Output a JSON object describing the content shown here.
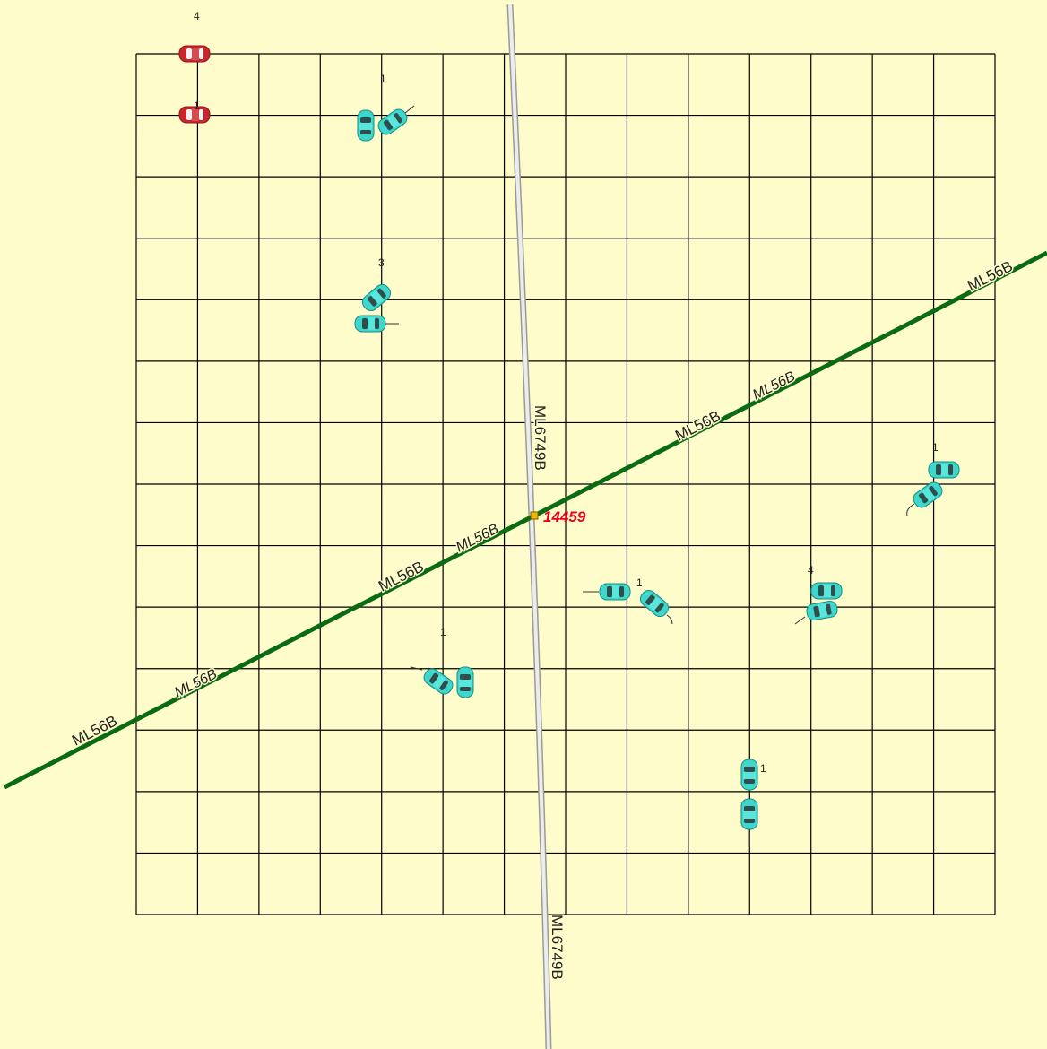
{
  "map": {
    "background": "#fdfcca",
    "grid": {
      "color": "#000000",
      "columns": 14,
      "rows": 14
    },
    "roads": [
      {
        "id": "ML56B",
        "color": "#0b6b12",
        "labels": [
          "ML56B",
          "ML56B",
          "ML56B",
          "ML56B",
          "ML56B",
          "ML56B",
          "ML56B",
          "ML56B"
        ]
      },
      {
        "id": "ML6749B",
        "color": "#c8c8c8",
        "labels": [
          "ML6749B",
          "ML6749B"
        ]
      }
    ],
    "node": {
      "label": "14459",
      "marker_color": "#f5b700",
      "label_color": "#e8001c"
    },
    "vehicle_colors": {
      "teal": "#3fd6cb",
      "red": "#c9262c",
      "window": "#2f4f4f"
    },
    "counts": [
      "4",
      "1",
      "1",
      "3",
      "1",
      "1",
      "4",
      "1",
      "1"
    ]
  }
}
